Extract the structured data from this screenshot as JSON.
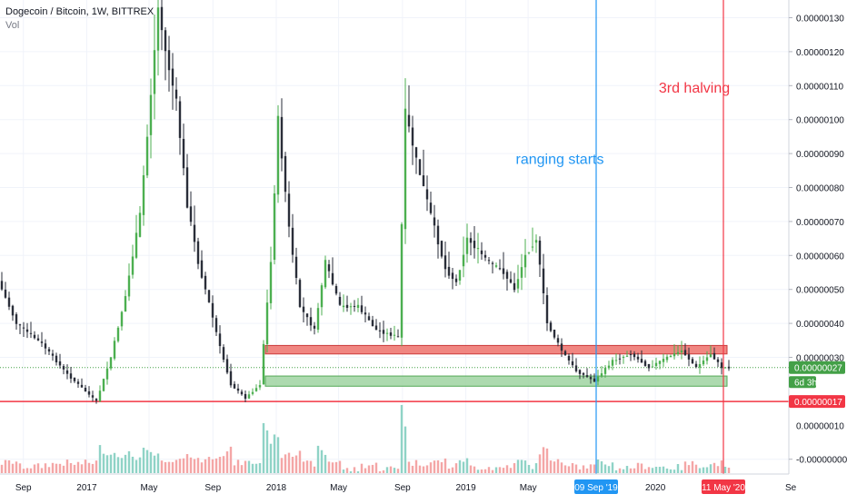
{
  "header": {
    "symbol": "Dogecoin / Bitcoin, 1W, BITTREX",
    "volume_label": "Vol"
  },
  "colors": {
    "up": "#4caf50",
    "down": "#2a2e39",
    "vol_up": "#8fd3c6",
    "vol_down": "#f4a6a6",
    "resistance_fill": "#ef7a74",
    "support_fill": "#a5d6a7",
    "red_line": "#f23645",
    "blue_line": "#2196f3",
    "last_price": "#43a047",
    "grid": "#f0f3fa"
  },
  "annotations": {
    "ranging_text": "ranging starts",
    "halving_text": "3rd halving"
  },
  "chart_data": {
    "type": "candlestick",
    "title": "Dogecoin / Bitcoin, 1W, BITTREX",
    "y_axis": {
      "range": [
        -5e-09,
        1.35e-07
      ],
      "ticks": [
        "0.00000130",
        "0.00000120",
        "0.00000110",
        "0.00000100",
        "0.00000090",
        "0.00000080",
        "0.00000070",
        "0.00000060",
        "0.00000050",
        "0.00000040",
        "0.00000030",
        "-0.00000000"
      ],
      "tick_values": [
        1.3e-07,
        1.2e-07,
        1.1e-07,
        1e-07,
        9e-08,
        8e-08,
        7e-08,
        6e-08,
        5e-08,
        4e-08,
        3e-08,
        0
      ],
      "partial_ticks": [
        {
          "label": "0.00000010",
          "value": 1e-08
        }
      ],
      "grid": true
    },
    "x_axis": {
      "range": [
        "2016-07-18",
        "2020-09-14"
      ],
      "ticks": [
        {
          "label": "Sep",
          "date": "2016-09-01"
        },
        {
          "label": "2017",
          "date": "2017-01-01"
        },
        {
          "label": "May",
          "date": "2017-05-01"
        },
        {
          "label": "Sep",
          "date": "2017-09-01"
        },
        {
          "label": "2018",
          "date": "2018-01-01"
        },
        {
          "label": "May",
          "date": "2018-05-01"
        },
        {
          "label": "Sep",
          "date": "2018-09-01"
        },
        {
          "label": "2019",
          "date": "2019-01-01"
        },
        {
          "label": "May",
          "date": "2019-05-01"
        },
        {
          "label": "2020",
          "date": "2020-01-01"
        }
      ],
      "edge_label": "Se"
    },
    "price_path": [
      [
        "2016-07-18",
        5.25e-08
      ],
      [
        "2016-08-22",
        4e-08
      ],
      [
        "2016-10-10",
        3.4e-08
      ],
      [
        "2016-11-28",
        2.5e-08
      ],
      [
        "2016-12-26",
        2.1e-08
      ],
      [
        "2017-01-23",
        1.7e-08
      ],
      [
        "2017-02-20",
        3e-08
      ],
      [
        "2017-03-20",
        4.8e-08
      ],
      [
        "2017-04-17",
        7.2e-08
      ],
      [
        "2017-05-01",
        9.5e-08
      ],
      [
        "2017-05-22",
        1.33e-07
      ],
      [
        "2017-06-05",
        1.2e-07
      ],
      [
        "2017-06-26",
        1.05e-07
      ],
      [
        "2017-07-17",
        7.5e-08
      ],
      [
        "2017-08-07",
        5.8e-08
      ],
      [
        "2017-08-28",
        4.6e-08
      ],
      [
        "2017-09-18",
        3.3e-08
      ],
      [
        "2017-10-09",
        2.2e-08
      ],
      [
        "2017-11-06",
        1.8e-08
      ],
      [
        "2017-12-04",
        2.2e-08
      ],
      [
        "2017-12-25",
        5.8e-08
      ],
      [
        "2018-01-08",
        1e-07
      ],
      [
        "2018-01-29",
        6.8e-08
      ],
      [
        "2018-02-19",
        4.5e-08
      ],
      [
        "2018-03-19",
        3.8e-08
      ],
      [
        "2018-04-09",
        5.8e-08
      ],
      [
        "2018-05-07",
        4.5e-08
      ],
      [
        "2018-06-11",
        4.5e-08
      ],
      [
        "2018-07-16",
        3.8e-08
      ],
      [
        "2018-08-27",
        3.6e-08
      ],
      [
        "2018-09-10",
        1.02e-07
      ],
      [
        "2018-10-01",
        8.8e-08
      ],
      [
        "2018-10-29",
        7.2e-08
      ],
      [
        "2018-11-26",
        5.6e-08
      ],
      [
        "2018-12-17",
        5.2e-08
      ],
      [
        "2019-01-07",
        6.5e-08
      ],
      [
        "2019-02-18",
        5.8e-08
      ],
      [
        "2019-03-18",
        5.5e-08
      ],
      [
        "2019-04-08",
        5e-08
      ],
      [
        "2019-04-29",
        6e-08
      ],
      [
        "2019-05-20",
        6.5e-08
      ],
      [
        "2019-06-10",
        4e-08
      ],
      [
        "2019-07-08",
        3.2e-08
      ],
      [
        "2019-08-05",
        2.6e-08
      ],
      [
        "2019-09-09",
        2.3e-08
      ],
      [
        "2019-10-14",
        2.9e-08
      ],
      [
        "2019-11-18",
        3.1e-08
      ],
      [
        "2019-12-23",
        2.7e-08
      ],
      [
        "2020-01-27",
        3e-08
      ],
      [
        "2020-02-24",
        3.2e-08
      ],
      [
        "2020-03-23",
        2.7e-08
      ],
      [
        "2020-04-20",
        3.1e-08
      ],
      [
        "2020-05-11",
        2.7e-08
      ]
    ],
    "zones": [
      {
        "name": "resistance",
        "from_date": "2017-12-11",
        "to_date": "2020-05-18",
        "low": 3.1e-08,
        "high": 3.35e-08
      },
      {
        "name": "support",
        "from_date": "2017-12-11",
        "to_date": "2020-05-18",
        "low": 2.15e-08,
        "high": 2.45e-08
      }
    ],
    "horizontal_lines": [
      {
        "value": 1.7e-08,
        "label": "0.00000017",
        "color": "#f23645",
        "style": "solid"
      },
      {
        "value": 2.7e-08,
        "label": "0.00000027",
        "color": "#43a047",
        "style": "dotted",
        "badge": "6d 3h"
      }
    ],
    "vertical_lines": [
      {
        "date": "2019-09-09",
        "label": "09 Sep '19",
        "color": "#2196f3"
      },
      {
        "date": "2020-05-11",
        "label": "11 May '20",
        "color": "#f23645"
      }
    ],
    "annotations": [
      {
        "text": "ranging starts",
        "date": "2019-07-01",
        "value": 8.7e-08,
        "color": "#2196f3"
      },
      {
        "text": "3rd halving",
        "date": "2020-03-16",
        "value": 1.08e-07,
        "color": "#f23645"
      }
    ],
    "volume": {
      "shown": true,
      "scale": "relative"
    }
  }
}
